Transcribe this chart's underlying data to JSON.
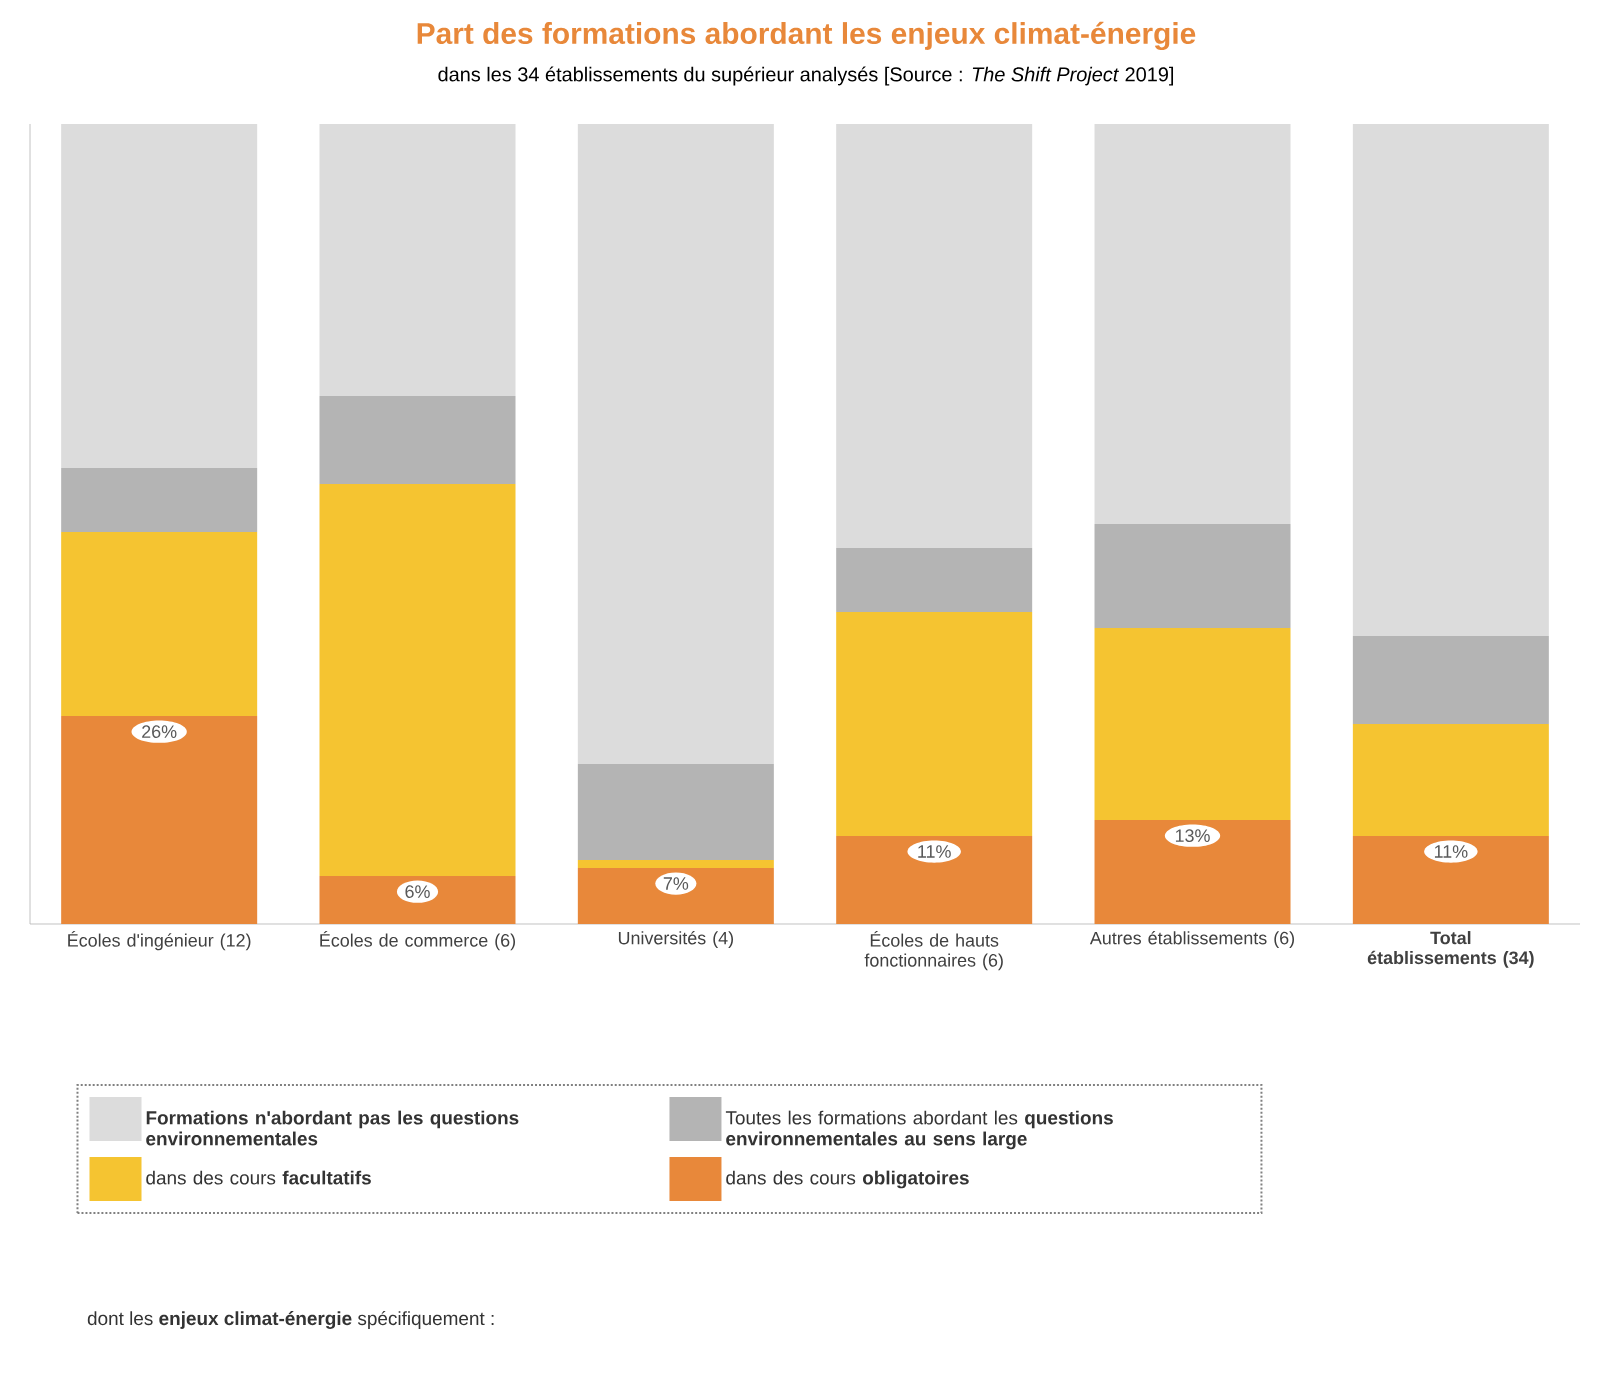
{
  "chart_data": {
    "type": "bar",
    "stacked": true,
    "title": "Part des formations abordant les enjeux climat-énergie",
    "subtitle": "dans les 34 établissements du supérieur analysés [Source : *The Shift Project* 2019]",
    "categories": [
      "Écoles d'ingénieur (12)",
      "Écoles de commerce (6)",
      "Universités (4)",
      "Écoles de hauts fonctionnaires (6)",
      "Autres établissements (6)",
      "**Total établissements (34)**"
    ],
    "series": [
      {
        "name": "dans des cours **obligatoires**",
        "color": "#e8883a",
        "values": [
          26,
          6,
          7,
          11,
          13,
          11
        ],
        "value_labels": [
          "26%",
          "6%",
          "7%",
          "11%",
          "13%",
          "11%"
        ]
      },
      {
        "name": "dans des cours **facultatifs**",
        "color": "#f5c431",
        "values": [
          23,
          49,
          1,
          28,
          24,
          14
        ]
      },
      {
        "name": "Toutes les formations abordant les **questions environnementales au sens large**",
        "color": "#b4b4b4",
        "values": [
          8,
          11,
          12,
          8,
          13,
          11
        ]
      },
      {
        "name": "**Formations n'abordant pas les questions environnementales**",
        "color": "#dcdcdc",
        "values": [
          43,
          34,
          80,
          53,
          50,
          64
        ]
      }
    ],
    "annotations": [
      "dont les **enjeux climat-énergie** spécifiquement :"
    ],
    "tick_labels": "x",
    "legend": "bottom"
  }
}
